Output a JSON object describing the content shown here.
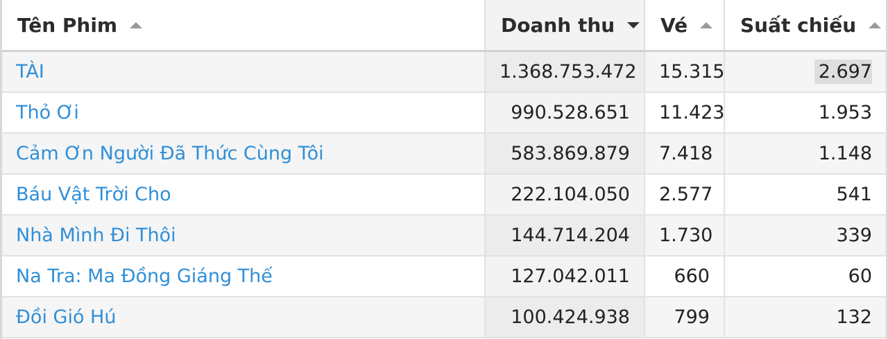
{
  "table": {
    "columns": [
      {
        "label": "Tên Phim",
        "sort": "asc"
      },
      {
        "label": "Doanh thu",
        "sort": "desc"
      },
      {
        "label": "Vé",
        "sort": "asc"
      },
      {
        "label": "Suất chiếu",
        "sort": "asc"
      }
    ],
    "rows": [
      {
        "title": "TÀI",
        "revenue": "1.368.753.472",
        "tickets": "15.315",
        "shows": "2.697"
      },
      {
        "title": "Thỏ Ơi",
        "revenue": "990.528.651",
        "tickets": "11.423",
        "shows": "1.953"
      },
      {
        "title": "Cảm Ơn Người Đã Thức Cùng Tôi",
        "revenue": "583.869.879",
        "tickets": "7.418",
        "shows": "1.148"
      },
      {
        "title": "Báu Vật Trời Cho",
        "revenue": "222.104.050",
        "tickets": "2.577",
        "shows": "541"
      },
      {
        "title": "Nhà Mình Đi Thôi",
        "revenue": "144.714.204",
        "tickets": "1.730",
        "shows": "339"
      },
      {
        "title": "Na Tra: Ma Đồng Giáng Thế",
        "revenue": "127.042.011",
        "tickets": "660",
        "shows": "60"
      },
      {
        "title": "Đồi Gió Hú",
        "revenue": "100.424.938",
        "tickets": "799",
        "shows": "132"
      }
    ]
  },
  "icons": {
    "sort_asc": "triangle-up-icon",
    "sort_desc": "triangle-down-icon"
  },
  "colors": {
    "link": "#2f8fd8",
    "text": "#222222"
  }
}
